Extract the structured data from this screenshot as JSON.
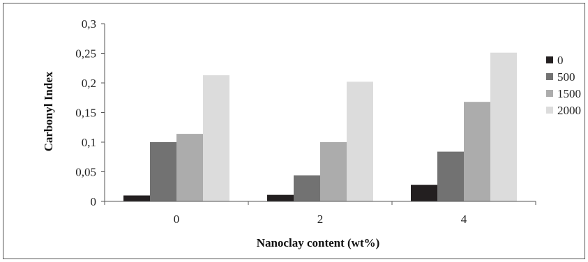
{
  "chart_data": {
    "type": "bar",
    "categories": [
      "0",
      "2",
      "4"
    ],
    "series": [
      {
        "name": "0",
        "values": [
          0.01,
          0.011,
          0.028
        ],
        "color": "#231f20"
      },
      {
        "name": "500",
        "values": [
          0.1,
          0.044,
          0.084
        ],
        "color": "#727272"
      },
      {
        "name": "1500",
        "values": [
          0.114,
          0.1,
          0.168
        ],
        "color": "#acacac"
      },
      {
        "name": "2000",
        "values": [
          0.213,
          0.202,
          0.251
        ],
        "color": "#dcdcdc"
      }
    ],
    "title": "",
    "xlabel": "Nanoclay content (wt%)",
    "ylabel": "Carbonyl Index",
    "ylim": [
      0,
      0.3
    ],
    "yticks": [
      "0",
      "0,05",
      "0,1",
      "0,15",
      "0,2",
      "0,25",
      "0,3"
    ],
    "grid": false,
    "legend": "right"
  }
}
